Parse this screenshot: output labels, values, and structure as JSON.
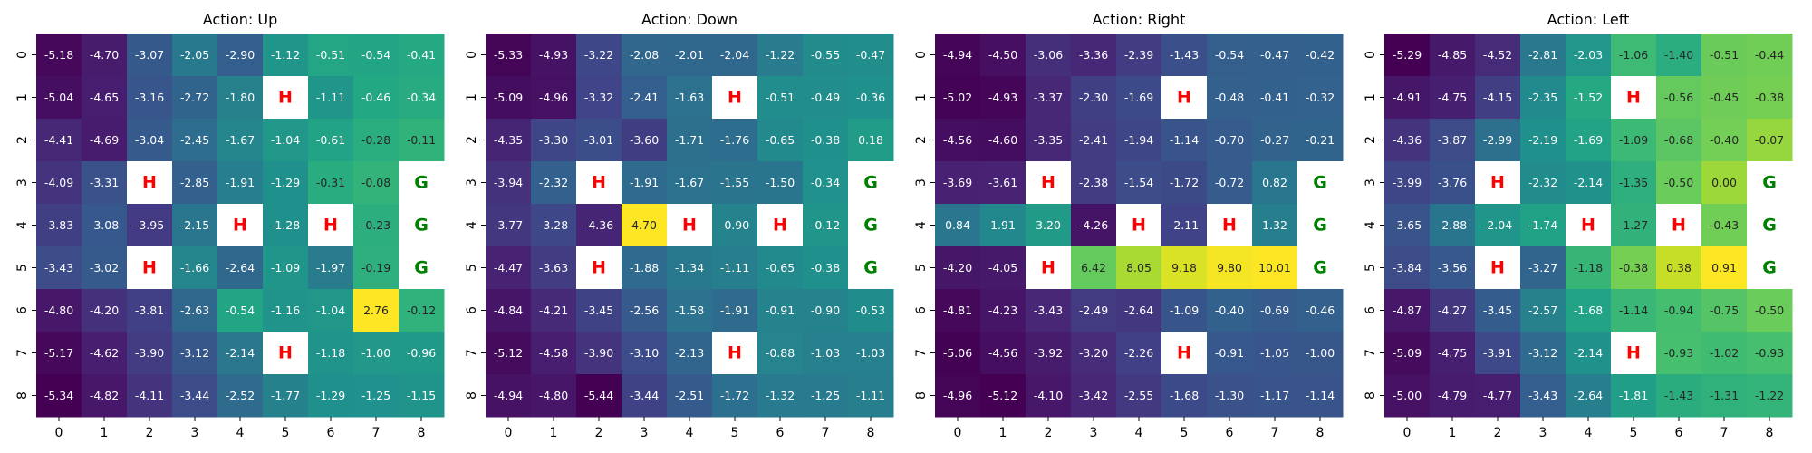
{
  "chart_data": [
    {
      "type": "heatmap",
      "title": "Action: Up",
      "x_tick_labels": [
        "0",
        "1",
        "2",
        "3",
        "4",
        "5",
        "6",
        "7",
        "8"
      ],
      "y_tick_labels": [
        "0",
        "1",
        "2",
        "3",
        "4",
        "5",
        "6",
        "7",
        "8"
      ],
      "colormap": "viridis",
      "vmin": -5.34,
      "vmax": 2.76,
      "values": [
        [
          -5.18,
          -4.7,
          -3.07,
          -2.05,
          -2.9,
          -1.12,
          -0.51,
          -0.54,
          -0.41
        ],
        [
          -5.04,
          -4.65,
          -3.16,
          -2.72,
          -1.8,
          "H",
          -1.11,
          -0.46,
          -0.34
        ],
        [
          -4.41,
          -4.69,
          -3.04,
          -2.45,
          -1.67,
          -1.04,
          -0.61,
          -0.28,
          -0.11
        ],
        [
          -4.09,
          -3.31,
          "H",
          -2.85,
          -1.91,
          -1.29,
          -0.31,
          -0.08,
          "G"
        ],
        [
          -3.83,
          -3.08,
          -3.95,
          -2.15,
          "H",
          -1.28,
          "H",
          -0.23,
          "G"
        ],
        [
          -3.43,
          -3.02,
          "H",
          -1.66,
          -2.64,
          -1.09,
          -1.97,
          -0.19,
          "G"
        ],
        [
          -4.8,
          -4.2,
          -3.81,
          -2.63,
          -0.54,
          -1.16,
          -1.04,
          2.76,
          -0.12
        ],
        [
          -5.17,
          -4.62,
          -3.9,
          -3.12,
          -2.14,
          "H",
          -1.18,
          -1.0,
          -0.96
        ],
        [
          -5.34,
          -4.82,
          -4.11,
          -3.44,
          -2.52,
          -1.77,
          -1.29,
          -1.25,
          -1.15
        ]
      ]
    },
    {
      "type": "heatmap",
      "title": "Action: Down",
      "x_tick_labels": [
        "0",
        "1",
        "2",
        "3",
        "4",
        "5",
        "6",
        "7",
        "8"
      ],
      "y_tick_labels": [
        "0",
        "1",
        "2",
        "3",
        "4",
        "5",
        "6",
        "7",
        "8"
      ],
      "colormap": "viridis",
      "vmin": -5.44,
      "vmax": 4.7,
      "values": [
        [
          -5.33,
          -4.93,
          -3.22,
          -2.08,
          -2.01,
          -2.04,
          -1.22,
          -0.55,
          -0.47
        ],
        [
          -5.09,
          -4.96,
          -3.32,
          -2.41,
          -1.63,
          "H",
          -0.51,
          -0.49,
          -0.36
        ],
        [
          -4.35,
          -3.3,
          -3.01,
          -3.6,
          -1.71,
          -1.76,
          -0.65,
          -0.38,
          0.18
        ],
        [
          -3.94,
          -2.32,
          "H",
          -1.91,
          -1.67,
          -1.55,
          -1.5,
          -0.34,
          "G"
        ],
        [
          -3.77,
          -3.28,
          -4.36,
          4.7,
          "H",
          -0.9,
          "H",
          -0.12,
          "G"
        ],
        [
          -4.47,
          -3.63,
          "H",
          -1.88,
          -1.34,
          -1.11,
          -0.65,
          -0.38,
          "G"
        ],
        [
          -4.84,
          -4.21,
          -3.45,
          -2.56,
          -1.58,
          -1.91,
          -0.91,
          -0.9,
          -0.53
        ],
        [
          -5.12,
          -4.58,
          -3.9,
          -3.1,
          -2.13,
          "H",
          -0.88,
          -1.03,
          -1.03
        ],
        [
          -4.94,
          -4.8,
          -5.44,
          -3.44,
          -2.51,
          -1.72,
          -1.32,
          -1.25,
          -1.11
        ]
      ]
    },
    {
      "type": "heatmap",
      "title": "Action: Right",
      "x_tick_labels": [
        "0",
        "1",
        "2",
        "3",
        "4",
        "5",
        "6",
        "7",
        "8"
      ],
      "y_tick_labels": [
        "0",
        "1",
        "2",
        "3",
        "4",
        "5",
        "6",
        "7",
        "8"
      ],
      "colormap": "viridis",
      "vmin": -5.12,
      "vmax": 10.01,
      "values": [
        [
          -4.94,
          -4.5,
          -3.06,
          -3.36,
          -2.39,
          -1.43,
          -0.54,
          -0.47,
          -0.42
        ],
        [
          -5.02,
          -4.93,
          -3.37,
          -2.3,
          -1.69,
          "H",
          -0.48,
          -0.41,
          -0.32
        ],
        [
          -4.56,
          -4.6,
          -3.35,
          -2.41,
          -1.94,
          -1.14,
          -0.7,
          -0.27,
          -0.21
        ],
        [
          -3.69,
          -3.61,
          "H",
          -2.38,
          -1.54,
          -1.72,
          -0.72,
          0.82,
          "G"
        ],
        [
          0.84,
          1.91,
          3.2,
          -4.26,
          "H",
          -2.11,
          "H",
          1.32,
          "G"
        ],
        [
          -4.2,
          -4.05,
          "H",
          6.42,
          8.05,
          9.18,
          9.8,
          10.01,
          "G"
        ],
        [
          -4.81,
          -4.23,
          -3.43,
          -2.49,
          -2.64,
          -1.09,
          -0.4,
          -0.69,
          -0.46
        ],
        [
          -5.06,
          -4.56,
          -3.92,
          -3.2,
          -2.26,
          "H",
          -0.91,
          -1.05,
          -1.0
        ],
        [
          -4.96,
          -5.12,
          -4.1,
          -3.42,
          -2.55,
          -1.68,
          -1.3,
          -1.17,
          -1.14
        ]
      ]
    },
    {
      "type": "heatmap",
      "title": "Action: Left",
      "x_tick_labels": [
        "0",
        "1",
        "2",
        "3",
        "4",
        "5",
        "6",
        "7",
        "8"
      ],
      "y_tick_labels": [
        "0",
        "1",
        "2",
        "3",
        "4",
        "5",
        "6",
        "7",
        "8"
      ],
      "colormap": "viridis",
      "vmin": -5.29,
      "vmax": 0.91,
      "values": [
        [
          -5.29,
          -4.85,
          -4.52,
          -2.81,
          -2.03,
          -1.06,
          -1.4,
          -0.51,
          -0.44
        ],
        [
          -4.91,
          -4.75,
          -4.15,
          -2.35,
          -1.52,
          "H",
          -0.56,
          -0.45,
          -0.38
        ],
        [
          -4.36,
          -3.87,
          -2.99,
          -2.19,
          -1.69,
          -1.09,
          -0.68,
          -0.4,
          -0.07
        ],
        [
          -3.99,
          -3.76,
          "H",
          -2.32,
          -2.14,
          -1.35,
          -0.5,
          0.0,
          "G"
        ],
        [
          -3.65,
          -2.88,
          -2.04,
          -1.74,
          "H",
          -1.27,
          "H",
          -0.43,
          "G"
        ],
        [
          -3.84,
          -3.56,
          "H",
          -3.27,
          -1.18,
          -0.38,
          0.38,
          0.91,
          "G"
        ],
        [
          -4.87,
          -4.27,
          -3.45,
          -2.57,
          -1.68,
          -1.14,
          -0.94,
          -0.75,
          -0.5
        ],
        [
          -5.09,
          -4.75,
          -3.91,
          -3.12,
          -2.14,
          "H",
          -0.93,
          -1.02,
          -0.93
        ],
        [
          -5.0,
          -4.79,
          -4.77,
          -3.43,
          -2.64,
          -1.81,
          -1.43,
          -1.31,
          -1.22
        ]
      ]
    }
  ],
  "special_cells": {
    "H": {
      "label": "H",
      "color": "#ff0000"
    },
    "G": {
      "label": "G",
      "color": "#008000"
    }
  }
}
